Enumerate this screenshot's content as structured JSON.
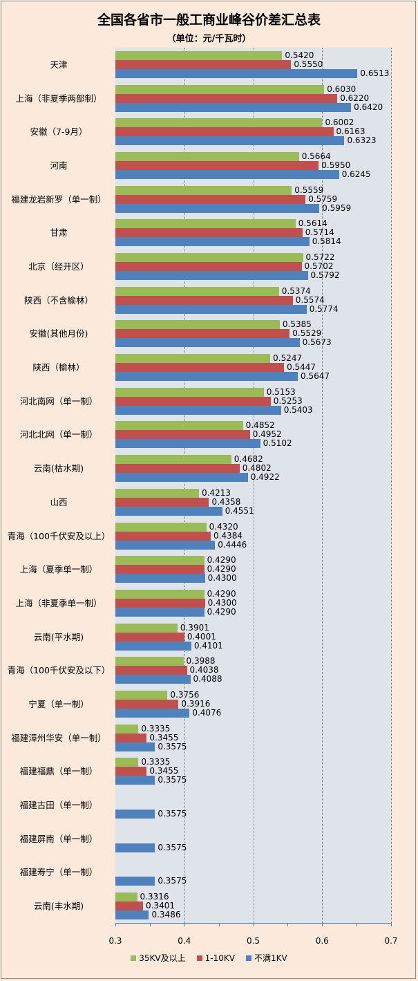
{
  "chart_data": {
    "type": "bar",
    "orientation": "horizontal",
    "title": "全国各省市一般工商业峰谷价差汇总表",
    "subtitle": "（单位：元/千瓦时）",
    "xlim": [
      0.3,
      0.7
    ],
    "xticks": [
      "0.3",
      "0.4",
      "0.5",
      "0.6",
      "0.7"
    ],
    "grid": true,
    "legend_position": "bottom",
    "categories": [
      "天津",
      "上海（非夏季两部制）",
      "安徽（7-9月）",
      "河南",
      "福建龙岩新罗（单一制）",
      "甘肃",
      "北京（经开区）",
      "陕西（不含榆林）",
      "安徽(其他月份)",
      "陕西（榆林）",
      "河北南网（单一制）",
      "河北北网（单一制）",
      "云南(枯水期)",
      "山西",
      "青海（100千伏安及以上）",
      "上海（夏季单一制）",
      "上海（非夏季单一制）",
      "云南(平水期)",
      "青海（100千伏安及以下）",
      "宁夏（单一制）",
      "福建漳州华安（单一制）",
      "福建福鼎（单一制）",
      "福建古田（单一制）",
      "福建屏南（单一制）",
      "福建寿宁（单一制）",
      "云南(丰水期)"
    ],
    "series": [
      {
        "name": "35KV及以上",
        "color": "#9bbb59",
        "values": [
          0.542,
          0.603,
          0.6002,
          0.5664,
          0.5559,
          0.5614,
          0.5722,
          0.5374,
          0.5385,
          0.5247,
          0.5153,
          0.4852,
          0.4682,
          0.4213,
          0.432,
          0.429,
          0.429,
          0.3901,
          0.3988,
          0.3756,
          0.3335,
          0.3335,
          null,
          null,
          null,
          0.3316
        ]
      },
      {
        "name": "1-10KV",
        "color": "#c0504d",
        "values": [
          0.555,
          0.622,
          0.6163,
          0.595,
          0.5759,
          0.5714,
          0.5702,
          0.5574,
          0.5529,
          0.5447,
          0.5253,
          0.4952,
          0.4802,
          0.4358,
          0.4384,
          0.429,
          0.43,
          0.4001,
          0.4038,
          0.3916,
          0.3455,
          0.3455,
          null,
          null,
          null,
          0.3401
        ]
      },
      {
        "name": "不满1KV",
        "color": "#4f81bd",
        "values": [
          0.6513,
          0.642,
          0.6323,
          0.6245,
          0.5959,
          0.5814,
          0.5792,
          0.5774,
          0.5673,
          0.5647,
          0.5403,
          0.5102,
          0.4922,
          0.4551,
          0.4446,
          0.43,
          0.429,
          0.4101,
          0.4088,
          0.4076,
          0.3575,
          0.3575,
          0.3575,
          0.3575,
          0.3575,
          0.3486
        ]
      }
    ]
  }
}
